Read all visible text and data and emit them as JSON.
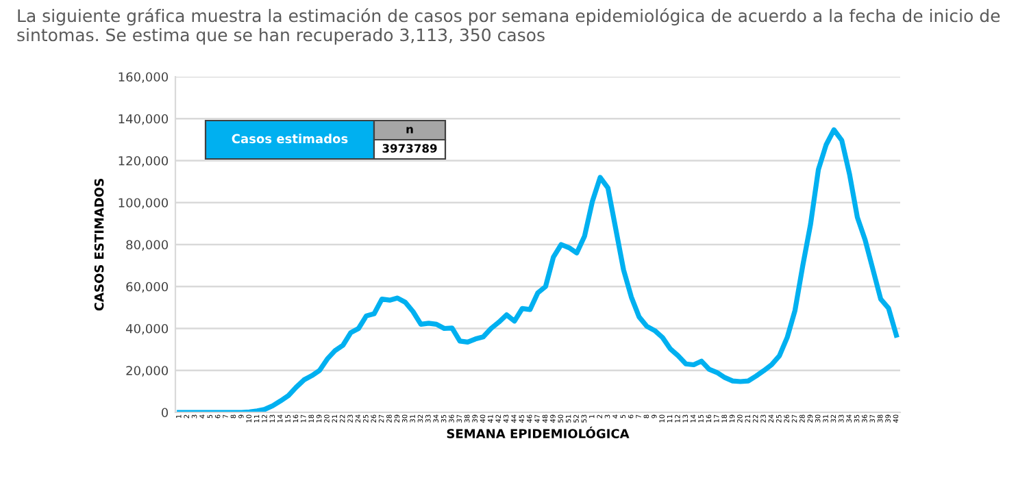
{
  "chart_data": {
    "type": "line",
    "title": "La siguiente gráfica muestra la estimación de casos por semana epidemiológica de acuerdo a la fecha de inicio de sintomas. Se estima que se han recuperado 3,113, 350 casos",
    "xlabel": "SEMANA EPIDEMIOLÓGICA",
    "ylabel": "CASOS ESTIMADOS",
    "annotations": [
      "Casos estimados",
      "n",
      "3973789"
    ],
    "categories": [
      "1",
      "2",
      "3",
      "4",
      "5",
      "6",
      "7",
      "8",
      "9",
      "10",
      "11",
      "12",
      "13",
      "14",
      "15",
      "16",
      "17",
      "18",
      "19",
      "20",
      "21",
      "22",
      "23",
      "24",
      "25",
      "26",
      "27",
      "28",
      "29",
      "30",
      "31",
      "32",
      "33",
      "34",
      "35",
      "36",
      "37",
      "38",
      "39",
      "40",
      "41",
      "42",
      "43",
      "44",
      "45",
      "46",
      "47",
      "48",
      "49",
      "50",
      "51",
      "52",
      "53",
      "1",
      "2",
      "3",
      "4",
      "5",
      "6",
      "7",
      "8",
      "9",
      "10",
      "11",
      "12",
      "13",
      "14",
      "15",
      "16",
      "17",
      "18",
      "19",
      "20",
      "21",
      "22",
      "23",
      "24",
      "25",
      "26",
      "27",
      "28",
      "29",
      "30",
      "31",
      "32",
      "33",
      "34",
      "35",
      "36",
      "37",
      "38",
      "39",
      "40"
    ],
    "series": [
      {
        "color": "#00b0f0",
        "values": [
          0,
          0,
          0,
          0,
          0,
          0,
          0,
          0,
          0,
          200,
          700,
          1500,
          3200,
          5500,
          8000,
          12000,
          15500,
          17500,
          20000,
          25500,
          29500,
          32000,
          38000,
          40000,
          46000,
          47000,
          54000,
          53500,
          54500,
          52500,
          48000,
          42000,
          42500,
          42000,
          40000,
          40200,
          34000,
          33500,
          35000,
          36000,
          40000,
          43000,
          46500,
          43500,
          49500,
          49000,
          57000,
          60000,
          74000,
          80000,
          78500,
          76000,
          84000,
          100500,
          112000,
          107000,
          87500,
          68000,
          55000,
          45500,
          41000,
          39000,
          35700,
          30300,
          27000,
          23100,
          22700,
          24400,
          20500,
          19000,
          16600,
          15000,
          14700,
          15000,
          17300,
          19900,
          22700,
          27000,
          35700,
          48600,
          70000,
          89700,
          115700,
          127600,
          134700,
          129700,
          113500,
          93000,
          82200,
          68100,
          54000,
          49700,
          36800
        ]
      }
    ],
    "ylim": [
      0,
      160000
    ],
    "yticks": [
      {
        "value": 0,
        "label": "0"
      },
      {
        "value": 20000,
        "label": "20,000"
      },
      {
        "value": 40000,
        "label": "40,000"
      },
      {
        "value": 60000,
        "label": "60,000"
      },
      {
        "value": 80000,
        "label": "80,000"
      },
      {
        "value": 100000,
        "label": "100,000"
      },
      {
        "value": 120000,
        "label": "120,000"
      },
      {
        "value": 140000,
        "label": "140,000"
      },
      {
        "value": 160000,
        "label": "160,000"
      }
    ],
    "grid": "y",
    "legend": false,
    "marker": "none",
    "line_style": "solid"
  }
}
